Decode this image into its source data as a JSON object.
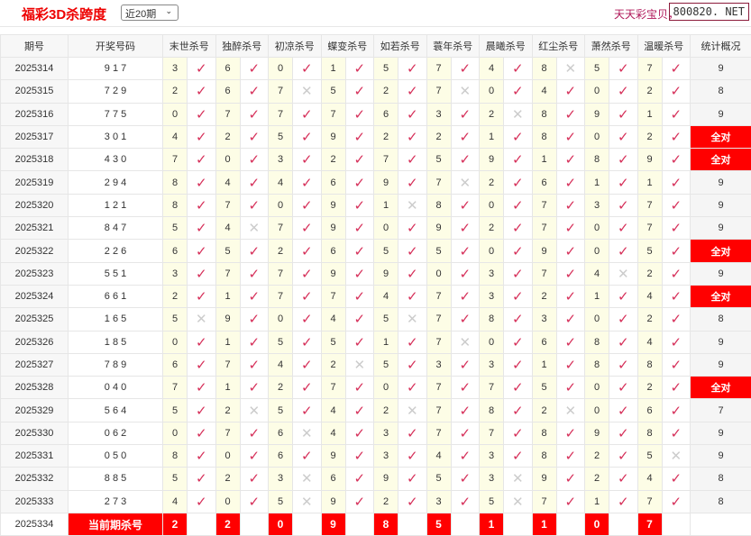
{
  "header": {
    "title": "福彩3D杀跨度",
    "period_select": "近20期",
    "brand": "天天彩宝贝，",
    "site": "800820. NET"
  },
  "colors": {
    "accent": "#ff0000",
    "check": "#d6305a",
    "cross": "#cccccc",
    "number_bg": "#fdfde6"
  },
  "columns": [
    "期号",
    "开奖号码",
    "末世杀号",
    "独醉杀号",
    "初凉杀号",
    "蝶变杀号",
    "如若杀号",
    "蓑年杀号",
    "晨曦杀号",
    "红尘杀号",
    "萧然杀号",
    "温暖杀号",
    "统计概况"
  ],
  "rows": [
    {
      "issue": "2025314",
      "draw": "9 1 7",
      "kills": [
        [
          3,
          1
        ],
        [
          6,
          1
        ],
        [
          0,
          1
        ],
        [
          1,
          1
        ],
        [
          5,
          1
        ],
        [
          7,
          1
        ],
        [
          4,
          1
        ],
        [
          8,
          0
        ],
        [
          5,
          1
        ],
        [
          7,
          1
        ]
      ],
      "stat": "9"
    },
    {
      "issue": "2025315",
      "draw": "7 2 9",
      "kills": [
        [
          2,
          1
        ],
        [
          6,
          1
        ],
        [
          7,
          0
        ],
        [
          5,
          1
        ],
        [
          2,
          1
        ],
        [
          7,
          0
        ],
        [
          0,
          1
        ],
        [
          4,
          1
        ],
        [
          0,
          1
        ],
        [
          2,
          1
        ]
      ],
      "stat": "8"
    },
    {
      "issue": "2025316",
      "draw": "7 7 5",
      "kills": [
        [
          0,
          1
        ],
        [
          7,
          1
        ],
        [
          7,
          1
        ],
        [
          7,
          1
        ],
        [
          6,
          1
        ],
        [
          3,
          1
        ],
        [
          2,
          0
        ],
        [
          8,
          1
        ],
        [
          9,
          1
        ],
        [
          1,
          1
        ]
      ],
      "stat": "9"
    },
    {
      "issue": "2025317",
      "draw": "3 0 1",
      "kills": [
        [
          4,
          1
        ],
        [
          2,
          1
        ],
        [
          5,
          1
        ],
        [
          9,
          1
        ],
        [
          2,
          1
        ],
        [
          2,
          1
        ],
        [
          1,
          1
        ],
        [
          8,
          1
        ],
        [
          0,
          1
        ],
        [
          2,
          1
        ]
      ],
      "stat": "全对"
    },
    {
      "issue": "2025318",
      "draw": "4 3 0",
      "kills": [
        [
          7,
          1
        ],
        [
          0,
          1
        ],
        [
          3,
          1
        ],
        [
          2,
          1
        ],
        [
          7,
          1
        ],
        [
          5,
          1
        ],
        [
          9,
          1
        ],
        [
          1,
          1
        ],
        [
          8,
          1
        ],
        [
          9,
          1
        ]
      ],
      "stat": "全对"
    },
    {
      "issue": "2025319",
      "draw": "2 9 4",
      "kills": [
        [
          8,
          1
        ],
        [
          4,
          1
        ],
        [
          4,
          1
        ],
        [
          6,
          1
        ],
        [
          9,
          1
        ],
        [
          7,
          0
        ],
        [
          2,
          1
        ],
        [
          6,
          1
        ],
        [
          1,
          1
        ],
        [
          1,
          1
        ]
      ],
      "stat": "9"
    },
    {
      "issue": "2025320",
      "draw": "1 2 1",
      "kills": [
        [
          8,
          1
        ],
        [
          7,
          1
        ],
        [
          0,
          1
        ],
        [
          9,
          1
        ],
        [
          1,
          0
        ],
        [
          8,
          1
        ],
        [
          0,
          1
        ],
        [
          7,
          1
        ],
        [
          3,
          1
        ],
        [
          7,
          1
        ]
      ],
      "stat": "9"
    },
    {
      "issue": "2025321",
      "draw": "8 4 7",
      "kills": [
        [
          5,
          1
        ],
        [
          4,
          0
        ],
        [
          7,
          1
        ],
        [
          9,
          1
        ],
        [
          0,
          1
        ],
        [
          9,
          1
        ],
        [
          2,
          1
        ],
        [
          7,
          1
        ],
        [
          0,
          1
        ],
        [
          7,
          1
        ]
      ],
      "stat": "9"
    },
    {
      "issue": "2025322",
      "draw": "2 2 6",
      "kills": [
        [
          6,
          1
        ],
        [
          5,
          1
        ],
        [
          2,
          1
        ],
        [
          6,
          1
        ],
        [
          5,
          1
        ],
        [
          5,
          1
        ],
        [
          0,
          1
        ],
        [
          9,
          1
        ],
        [
          0,
          1
        ],
        [
          5,
          1
        ]
      ],
      "stat": "全对"
    },
    {
      "issue": "2025323",
      "draw": "5 5 1",
      "kills": [
        [
          3,
          1
        ],
        [
          7,
          1
        ],
        [
          7,
          1
        ],
        [
          9,
          1
        ],
        [
          9,
          1
        ],
        [
          0,
          1
        ],
        [
          3,
          1
        ],
        [
          7,
          1
        ],
        [
          4,
          0
        ],
        [
          2,
          1
        ]
      ],
      "stat": "9"
    },
    {
      "issue": "2025324",
      "draw": "6 6 1",
      "kills": [
        [
          2,
          1
        ],
        [
          1,
          1
        ],
        [
          7,
          1
        ],
        [
          7,
          1
        ],
        [
          4,
          1
        ],
        [
          7,
          1
        ],
        [
          3,
          1
        ],
        [
          2,
          1
        ],
        [
          1,
          1
        ],
        [
          4,
          1
        ]
      ],
      "stat": "全对"
    },
    {
      "issue": "2025325",
      "draw": "1 6 5",
      "kills": [
        [
          5,
          0
        ],
        [
          9,
          1
        ],
        [
          0,
          1
        ],
        [
          4,
          1
        ],
        [
          5,
          0
        ],
        [
          7,
          1
        ],
        [
          8,
          1
        ],
        [
          3,
          1
        ],
        [
          0,
          1
        ],
        [
          2,
          1
        ]
      ],
      "stat": "8"
    },
    {
      "issue": "2025326",
      "draw": "1 8 5",
      "kills": [
        [
          0,
          1
        ],
        [
          1,
          1
        ],
        [
          5,
          1
        ],
        [
          5,
          1
        ],
        [
          1,
          1
        ],
        [
          7,
          0
        ],
        [
          0,
          1
        ],
        [
          6,
          1
        ],
        [
          8,
          1
        ],
        [
          4,
          1
        ]
      ],
      "stat": "9"
    },
    {
      "issue": "2025327",
      "draw": "7 8 9",
      "kills": [
        [
          6,
          1
        ],
        [
          7,
          1
        ],
        [
          4,
          1
        ],
        [
          2,
          0
        ],
        [
          5,
          1
        ],
        [
          3,
          1
        ],
        [
          3,
          1
        ],
        [
          1,
          1
        ],
        [
          8,
          1
        ],
        [
          8,
          1
        ]
      ],
      "stat": "9"
    },
    {
      "issue": "2025328",
      "draw": "0 4 0",
      "kills": [
        [
          7,
          1
        ],
        [
          1,
          1
        ],
        [
          2,
          1
        ],
        [
          7,
          1
        ],
        [
          0,
          1
        ],
        [
          7,
          1
        ],
        [
          7,
          1
        ],
        [
          5,
          1
        ],
        [
          0,
          1
        ],
        [
          2,
          1
        ]
      ],
      "stat": "全对"
    },
    {
      "issue": "2025329",
      "draw": "5 6 4",
      "kills": [
        [
          5,
          1
        ],
        [
          2,
          0
        ],
        [
          5,
          1
        ],
        [
          4,
          1
        ],
        [
          2,
          0
        ],
        [
          7,
          1
        ],
        [
          8,
          1
        ],
        [
          2,
          0
        ],
        [
          0,
          1
        ],
        [
          6,
          1
        ]
      ],
      "stat": "7"
    },
    {
      "issue": "2025330",
      "draw": "0 6 2",
      "kills": [
        [
          0,
          1
        ],
        [
          7,
          1
        ],
        [
          6,
          0
        ],
        [
          4,
          1
        ],
        [
          3,
          1
        ],
        [
          7,
          1
        ],
        [
          7,
          1
        ],
        [
          8,
          1
        ],
        [
          9,
          1
        ],
        [
          8,
          1
        ]
      ],
      "stat": "9"
    },
    {
      "issue": "2025331",
      "draw": "0 5 0",
      "kills": [
        [
          8,
          1
        ],
        [
          0,
          1
        ],
        [
          6,
          1
        ],
        [
          9,
          1
        ],
        [
          3,
          1
        ],
        [
          4,
          1
        ],
        [
          3,
          1
        ],
        [
          8,
          1
        ],
        [
          2,
          1
        ],
        [
          5,
          0
        ]
      ],
      "stat": "9"
    },
    {
      "issue": "2025332",
      "draw": "8 8 5",
      "kills": [
        [
          5,
          1
        ],
        [
          2,
          1
        ],
        [
          3,
          0
        ],
        [
          6,
          1
        ],
        [
          9,
          1
        ],
        [
          5,
          1
        ],
        [
          3,
          0
        ],
        [
          9,
          1
        ],
        [
          2,
          1
        ],
        [
          4,
          1
        ]
      ],
      "stat": "8"
    },
    {
      "issue": "2025333",
      "draw": "2 7 3",
      "kills": [
        [
          4,
          1
        ],
        [
          0,
          1
        ],
        [
          5,
          0
        ],
        [
          9,
          1
        ],
        [
          2,
          1
        ],
        [
          3,
          1
        ],
        [
          5,
          0
        ],
        [
          7,
          1
        ],
        [
          1,
          1
        ],
        [
          7,
          1
        ]
      ],
      "stat": "8"
    }
  ],
  "current": {
    "issue": "2025334",
    "label": "当前期杀号",
    "kills": [
      "2",
      "2",
      "0",
      "9",
      "8",
      "5",
      "1",
      "1",
      "0",
      "7"
    ]
  },
  "marks": {
    "ok": "✓",
    "no": "✕"
  }
}
